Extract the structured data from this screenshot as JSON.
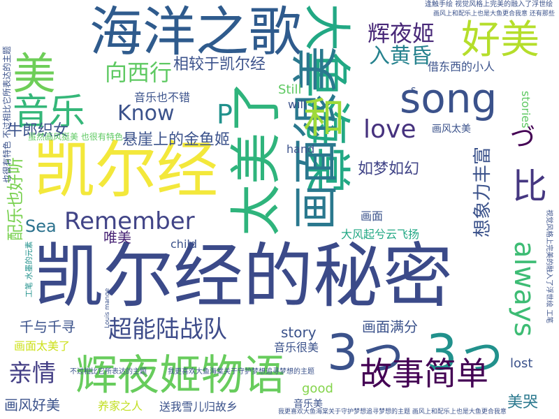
{
  "palette": [
    "#440154",
    "#3b528b",
    "#21918c",
    "#5ec962",
    "#fde725"
  ],
  "words": [
    {
      "text": "凯尔经的秘密",
      "color": "#3b4a89"
    },
    {
      "text": "海洋之歌",
      "color": "#2f5b8d"
    },
    {
      "text": "凯尔经",
      "color": "#f3e83b"
    },
    {
      "text": "太美了",
      "color": "#2fb47c"
    },
    {
      "text": "大鱼海棠",
      "color": "#22a884"
    },
    {
      "text": "画面很美",
      "color": "#2a788e"
    },
    {
      "text": "辉夜姬物语",
      "color": "#67cc5c"
    },
    {
      "text": "美",
      "color": "#6ece58"
    },
    {
      "text": "好美",
      "color": "#b5de2b"
    },
    {
      "text": "音乐",
      "color": "#35b779"
    },
    {
      "text": "song",
      "color": "#3b528b"
    },
    {
      "text": "和",
      "color": "#9fda3a"
    },
    {
      "text": "比",
      "color": "#453781"
    },
    {
      "text": "3っ",
      "color": "#3b528b"
    },
    {
      "text": "3っ",
      "color": "#21918c"
    },
    {
      "text": "故事简单",
      "color": "#440154"
    },
    {
      "text": "超能陆战队",
      "color": "#3e4c8a"
    },
    {
      "text": "亲情",
      "color": "#433e85"
    },
    {
      "text": "辉夜姬",
      "color": "#482878"
    },
    {
      "text": "入黄昏",
      "color": "#26828e"
    },
    {
      "text": "向西行",
      "color": "#5ec962"
    },
    {
      "text": "Remember",
      "color": "#414487"
    },
    {
      "text": "Know",
      "color": "#3b528b"
    },
    {
      "text": "love",
      "color": "#46327e"
    },
    {
      "text": "P",
      "color": "#21918c"
    },
    {
      "text": "づ",
      "color": "#440154"
    },
    {
      "text": "always",
      "color": "#3dbc74"
    },
    {
      "text": "想象力丰富",
      "color": "#3b528b"
    },
    {
      "text": "相较于凯尔经",
      "color": "#3b528b"
    },
    {
      "text": "悬崖上的金鱼姬",
      "color": "#3b528b"
    },
    {
      "text": "如梦如幻",
      "color": "#414487"
    },
    {
      "text": "牛郎织女",
      "color": "#3b528b"
    },
    {
      "text": "配乐也好听",
      "color": "#7ad151"
    },
    {
      "text": "Sea",
      "color": "#2c728e"
    },
    {
      "text": "唯美",
      "color": "#482475"
    },
    {
      "text": "音乐也不错",
      "color": "#3b528b"
    },
    {
      "text": "千与千寻",
      "color": "#3b528b"
    },
    {
      "text": "画面太美了",
      "color": "#cde11d"
    },
    {
      "text": "画风好美",
      "color": "#3b528b"
    },
    {
      "text": "养家之人",
      "color": "#c2df23"
    },
    {
      "text": "送我雪儿归故乡",
      "color": "#3b528b"
    },
    {
      "text": "美哭",
      "color": "#2a788e"
    },
    {
      "text": "画面满分",
      "color": "#3b528b"
    },
    {
      "text": "story",
      "color": "#3b528b"
    },
    {
      "text": "good",
      "color": "#84d44b"
    },
    {
      "text": "音乐很美",
      "color": "#3b528b"
    },
    {
      "text": "音乐美",
      "color": "#3b528b"
    },
    {
      "text": "lost",
      "color": "#3b528b"
    },
    {
      "text": "child",
      "color": "#3b528b"
    },
    {
      "text": "大风起兮云飞扬",
      "color": "#22a884"
    },
    {
      "text": "画面",
      "color": "#3b528b"
    },
    {
      "text": "hand",
      "color": "#3b528b"
    },
    {
      "text": "will",
      "color": "#3b528b"
    },
    {
      "text": "Still",
      "color": "#5ec962"
    },
    {
      "text": "s",
      "color": "#3b528b"
    },
    {
      "text": "stories",
      "color": "#5ec962"
    },
    {
      "text": "画风太美",
      "color": "#3b528b"
    },
    {
      "text": "借东西的小人",
      "color": "#3b528b"
    },
    {
      "text": "虽然画风挺美 也很有特色",
      "color": "#5ec962"
    },
    {
      "text": "也很有特色 不过相比它所表达的主题",
      "color": "#3b528b"
    },
    {
      "text": "我更喜欢大鱼海棠关于守护梦想追寻梦想的主题",
      "color": "#3b528b"
    },
    {
      "text": "不过相比它所表达的主题",
      "color": "#3b528b"
    },
    {
      "text": "我更喜欢大鱼海棠关于守护梦想追寻梦想的主题 画风上和配乐上也是大鱼更合我意",
      "color": "#3b528b"
    },
    {
      "text": "逢触手绘 视觉风格上完美的融入了浮世绘",
      "color": "#3b528b"
    },
    {
      "text": "画风上和配乐上也是大鱼更合我意 还有那些",
      "color": "#3b528b"
    },
    {
      "text": "工笔 水墨的元素",
      "color": "#21918c"
    },
    {
      "text": "视觉风格上完美的融入了浮世绘 工笔",
      "color": "#3b528b"
    },
    {
      "text": "Louis mange",
      "color": "#3b528b"
    }
  ]
}
